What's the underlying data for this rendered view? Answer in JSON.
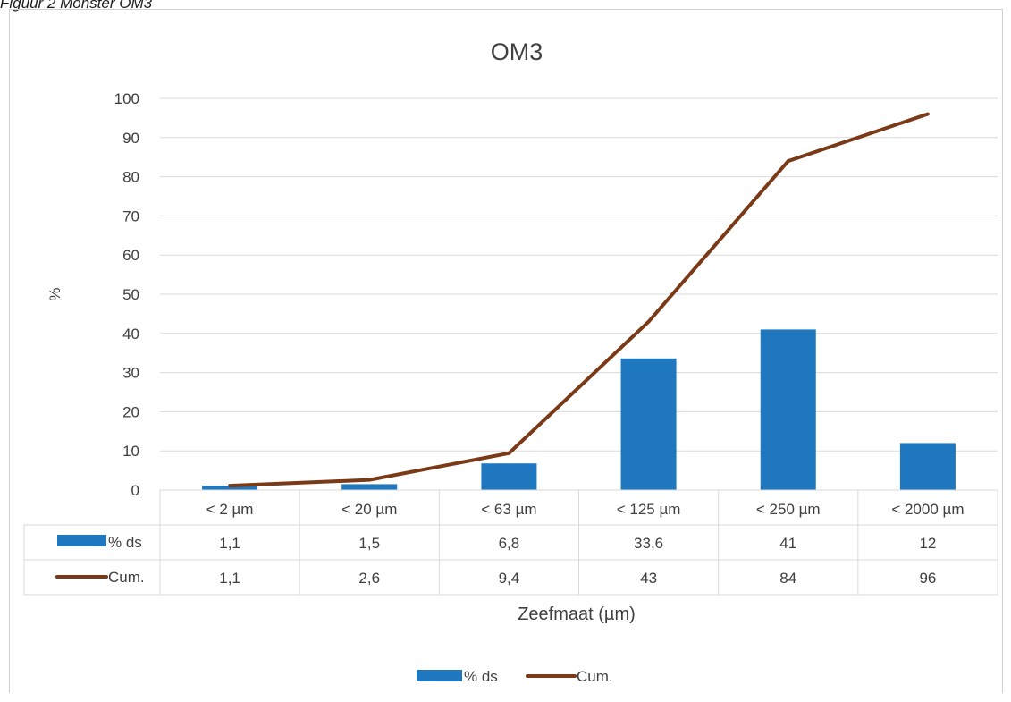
{
  "caption": "Figuur 2 Monster OM3",
  "chart_data": {
    "type": "bar",
    "title": "OM3",
    "xlabel": "Zeefmaat (µm)",
    "ylabel": "%",
    "ylim": [
      0,
      100
    ],
    "yticks": [
      0,
      10,
      20,
      30,
      40,
      50,
      60,
      70,
      80,
      90,
      100
    ],
    "categories": [
      "< 2 µm",
      "< 20 µm",
      "< 63 µm",
      "< 125 µm",
      "< 250 µm",
      "< 2000 µm"
    ],
    "series": [
      {
        "name": "% ds",
        "kind": "bar",
        "color": "#1f77c0",
        "values": [
          1.1,
          1.5,
          6.8,
          33.6,
          41,
          12
        ],
        "labels": [
          "1,1",
          "1,5",
          "6,8",
          "33,6",
          "41",
          "12"
        ]
      },
      {
        "name": "Cum.",
        "kind": "line",
        "color": "#7b3a17",
        "values": [
          1.1,
          2.6,
          9.4,
          43,
          84,
          96
        ],
        "labels": [
          "1,1",
          "2,6",
          "9,4",
          "43",
          "84",
          "96"
        ]
      }
    ],
    "grid": true,
    "legend": "bottom",
    "data_table": true
  }
}
